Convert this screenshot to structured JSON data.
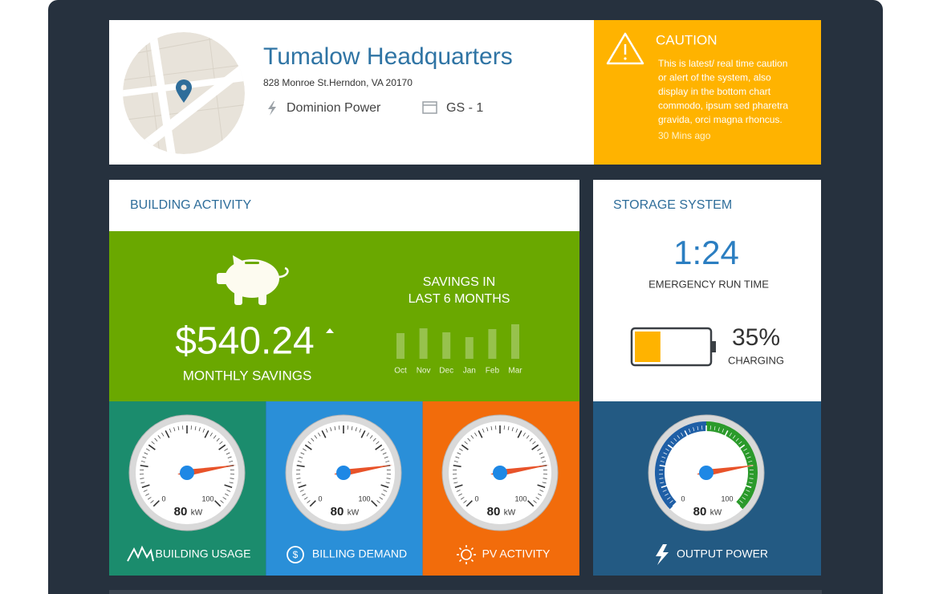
{
  "header": {
    "title": "Tumalow Headquarters",
    "address": "828 Monroe St.Herndon, VA 20170",
    "utility": "Dominion Power",
    "rate": "GS - 1"
  },
  "caution": {
    "title": "CAUTION",
    "message": [
      "This is latest/ real time caution",
      "or alert of the  system, also",
      "display in the bottom chart",
      "commodo, ipsum sed pharetra",
      "gravida, orci magna rhoncus."
    ],
    "time": "30 Mins ago"
  },
  "building_activity": {
    "title": "BUILDING ACTIVITY",
    "savings": "$540.24",
    "savings_label": "MONTHLY SAVINGS",
    "chart_title": [
      "SAVINGS IN",
      "LAST 6 MONTHS"
    ],
    "chart": {
      "categories": [
        "Oct",
        "Nov",
        "Dec",
        "Jan",
        "Feb",
        "Mar"
      ],
      "values": [
        32,
        38,
        33,
        27,
        37,
        43
      ]
    }
  },
  "gauges": [
    {
      "label": "BUILDING USAGE",
      "value": 80,
      "unit": "kW",
      "min": 0,
      "max": 100,
      "color": "#1b8c6d"
    },
    {
      "label": "BILLING DEMAND",
      "value": 80,
      "unit": "kW",
      "min": 0,
      "max": 100,
      "color": "#2a8fd8"
    },
    {
      "label": "PV ACTIVITY",
      "value": 80,
      "unit": "kW",
      "min": 0,
      "max": 100,
      "color": "#f26c0b"
    }
  ],
  "storage": {
    "title": "STORAGE SYSTEM",
    "run_time": "1:24",
    "run_time_label": "EMERGENCY RUN TIME",
    "charge": 35,
    "charge_label": "35%",
    "status": "CHARGING",
    "gauge": {
      "label": "OUTPUT POWER",
      "value": 80,
      "unit": "kW",
      "min": 0,
      "max": 100,
      "color": "#235a83",
      "bands": [
        {
          "from": 0,
          "to": 50,
          "color": "#1f5fa6"
        },
        {
          "from": 50,
          "to": 100,
          "color": "#2b9a2b"
        }
      ]
    }
  }
}
